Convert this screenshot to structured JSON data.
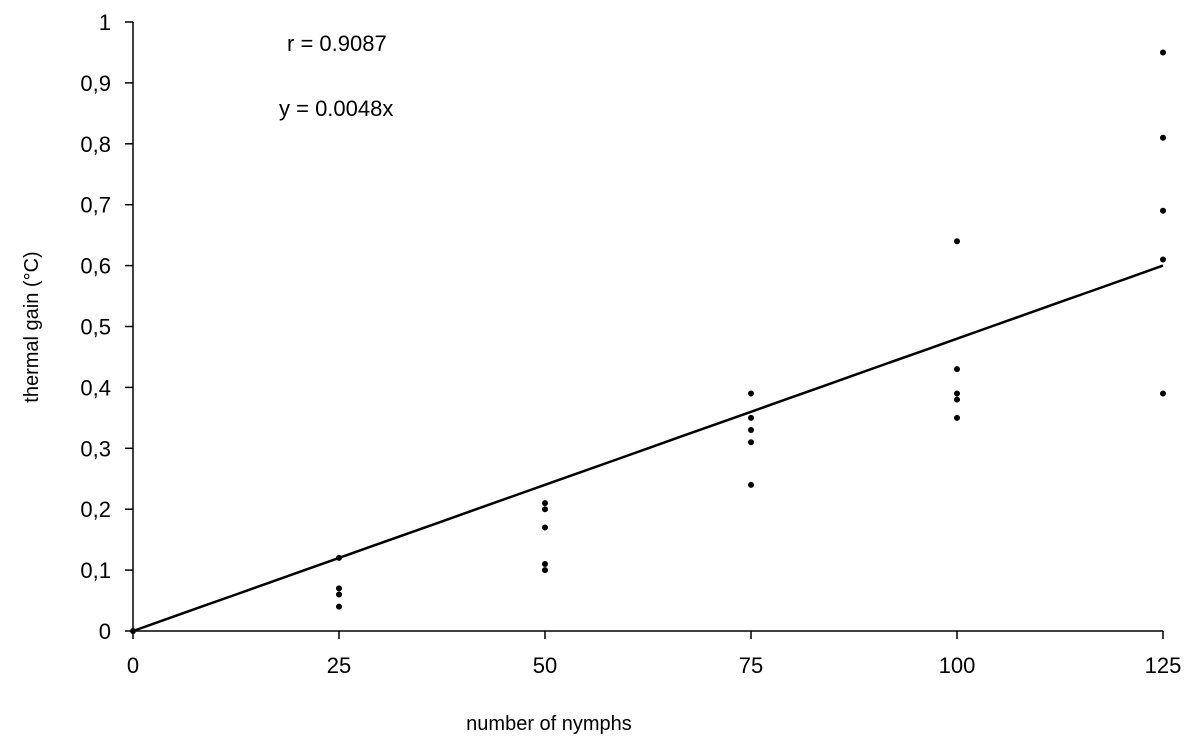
{
  "chart_data": {
    "type": "scatter",
    "xlabel": "number of nymphs",
    "ylabel": "thermal gain (°C)",
    "xlim": [
      0,
      125
    ],
    "ylim": [
      0,
      1
    ],
    "x_ticks": [
      0,
      25,
      50,
      75,
      100,
      125
    ],
    "x_tick_labels": [
      "0",
      "25",
      "50",
      "75",
      "100",
      "125"
    ],
    "y_ticks": [
      0,
      0.1,
      0.2,
      0.3,
      0.4,
      0.5,
      0.6,
      0.7,
      0.8,
      0.9,
      1
    ],
    "y_tick_labels": [
      "0",
      "0,1",
      "0,2",
      "0,3",
      "0,4",
      "0,5",
      "0,6",
      "0,7",
      "0,8",
      "0,9",
      "1"
    ],
    "grid": false,
    "series": [
      {
        "points": [
          [
            0,
            0
          ],
          [
            25,
            0.12
          ],
          [
            25,
            0.07
          ],
          [
            25,
            0.06
          ],
          [
            25,
            0.04
          ],
          [
            50,
            0.21
          ],
          [
            50,
            0.2
          ],
          [
            50,
            0.17
          ],
          [
            50,
            0.11
          ],
          [
            50,
            0.1
          ],
          [
            75,
            0.39
          ],
          [
            75,
            0.35
          ],
          [
            75,
            0.33
          ],
          [
            75,
            0.31
          ],
          [
            75,
            0.24
          ],
          [
            100,
            0.64
          ],
          [
            100,
            0.43
          ],
          [
            100,
            0.39
          ],
          [
            100,
            0.38
          ],
          [
            100,
            0.35
          ],
          [
            125,
            0.95
          ],
          [
            125,
            0.81
          ],
          [
            125,
            0.69
          ],
          [
            125,
            0.61
          ],
          [
            125,
            0.39
          ]
        ]
      }
    ],
    "trendline": {
      "slope": 0.0048,
      "x_range": [
        0,
        125
      ]
    },
    "annotations": {
      "r_label": "r = 0.9087",
      "equation_label": "y = 0.0048x"
    },
    "colors": {
      "points": "#000000",
      "line": "#000000",
      "axes": "#000000"
    }
  }
}
